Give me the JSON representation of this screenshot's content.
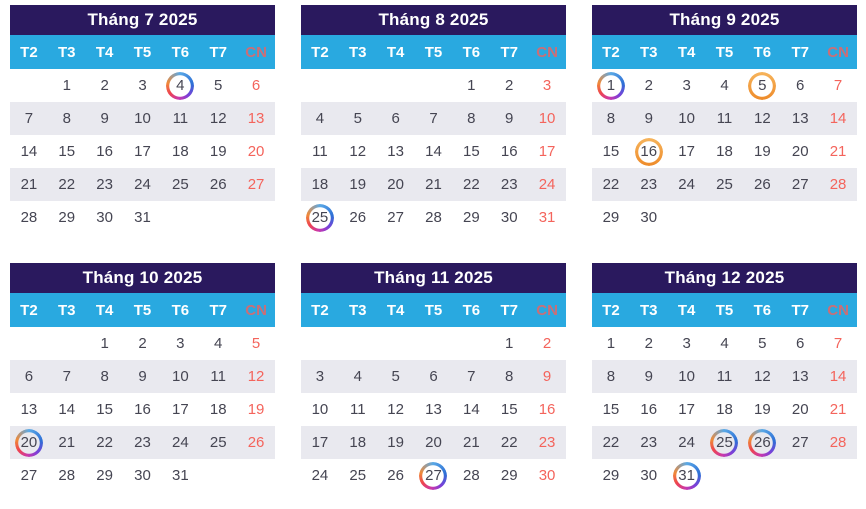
{
  "theme": {
    "header_bg": "#2a195e",
    "weekday_bg": "#29a9e0",
    "weekday_text": "#ffffff",
    "weekday_sunday_text": "#c96f78",
    "day_text": "#454552",
    "sunday_text": "#f4645c",
    "row_alt_bg": "#e9e9ef",
    "ring_orange": [
      "#f6b45c",
      "#ee8b2a"
    ],
    "ring_multicolor": [
      "#5aa9e6",
      "#2e6fd6",
      "#7c3fd8",
      "#c838ae",
      "#ee4450",
      "#f08a38"
    ]
  },
  "weekdays": [
    "T2",
    "T3",
    "T4",
    "T5",
    "T6",
    "T7",
    "CN"
  ],
  "months": [
    {
      "title": "Tháng 7 2025",
      "weeks": [
        [
          "",
          "1",
          "2",
          "3",
          "4",
          "5",
          "6"
        ],
        [
          "7",
          "8",
          "9",
          "10",
          "11",
          "12",
          "13"
        ],
        [
          "14",
          "15",
          "16",
          "17",
          "18",
          "19",
          "20"
        ],
        [
          "21",
          "22",
          "23",
          "24",
          "25",
          "26",
          "27"
        ],
        [
          "28",
          "29",
          "30",
          "31",
          "",
          "",
          ""
        ]
      ],
      "rings": {
        "4": "multicolor"
      }
    },
    {
      "title": "Tháng 8 2025",
      "weeks": [
        [
          "",
          "",
          "",
          "",
          "1",
          "2",
          "3"
        ],
        [
          "4",
          "5",
          "6",
          "7",
          "8",
          "9",
          "10"
        ],
        [
          "11",
          "12",
          "13",
          "14",
          "15",
          "16",
          "17"
        ],
        [
          "18",
          "19",
          "20",
          "21",
          "22",
          "23",
          "24"
        ],
        [
          "25",
          "26",
          "27",
          "28",
          "29",
          "30",
          "31"
        ]
      ],
      "rings": {
        "25": "multicolor"
      }
    },
    {
      "title": "Tháng 9 2025",
      "weeks": [
        [
          "1",
          "2",
          "3",
          "4",
          "5",
          "6",
          "7"
        ],
        [
          "8",
          "9",
          "10",
          "11",
          "12",
          "13",
          "14"
        ],
        [
          "15",
          "16",
          "17",
          "18",
          "19",
          "20",
          "21"
        ],
        [
          "22",
          "23",
          "24",
          "25",
          "26",
          "27",
          "28"
        ],
        [
          "29",
          "30",
          "",
          "",
          "",
          "",
          ""
        ]
      ],
      "rings": {
        "1": "multicolor",
        "5": "orange",
        "16": "orange"
      }
    },
    {
      "title": "Tháng 10 2025",
      "weeks": [
        [
          "",
          "",
          "1",
          "2",
          "3",
          "4",
          "5"
        ],
        [
          "6",
          "7",
          "8",
          "9",
          "10",
          "11",
          "12"
        ],
        [
          "13",
          "14",
          "15",
          "16",
          "17",
          "18",
          "19"
        ],
        [
          "20",
          "21",
          "22",
          "23",
          "24",
          "25",
          "26"
        ],
        [
          "27",
          "28",
          "29",
          "30",
          "31",
          "",
          ""
        ]
      ],
      "rings": {
        "20": "multicolor"
      }
    },
    {
      "title": "Tháng 11 2025",
      "weeks": [
        [
          "",
          "",
          "",
          "",
          "",
          "1",
          "2"
        ],
        [
          "3",
          "4",
          "5",
          "6",
          "7",
          "8",
          "9"
        ],
        [
          "10",
          "11",
          "12",
          "13",
          "14",
          "15",
          "16"
        ],
        [
          "17",
          "18",
          "19",
          "20",
          "21",
          "22",
          "23"
        ],
        [
          "24",
          "25",
          "26",
          "27",
          "28",
          "29",
          "30"
        ]
      ],
      "rings": {
        "27": "multicolor"
      }
    },
    {
      "title": "Tháng 12 2025",
      "weeks": [
        [
          "1",
          "2",
          "3",
          "4",
          "5",
          "6",
          "7"
        ],
        [
          "8",
          "9",
          "10",
          "11",
          "12",
          "13",
          "14"
        ],
        [
          "15",
          "16",
          "17",
          "18",
          "19",
          "20",
          "21"
        ],
        [
          "22",
          "23",
          "24",
          "25",
          "26",
          "27",
          "28"
        ],
        [
          "29",
          "30",
          "31",
          "",
          "",
          "",
          ""
        ]
      ],
      "rings": {
        "25": "multicolor",
        "26": "multicolor",
        "31": "multicolor"
      }
    }
  ]
}
